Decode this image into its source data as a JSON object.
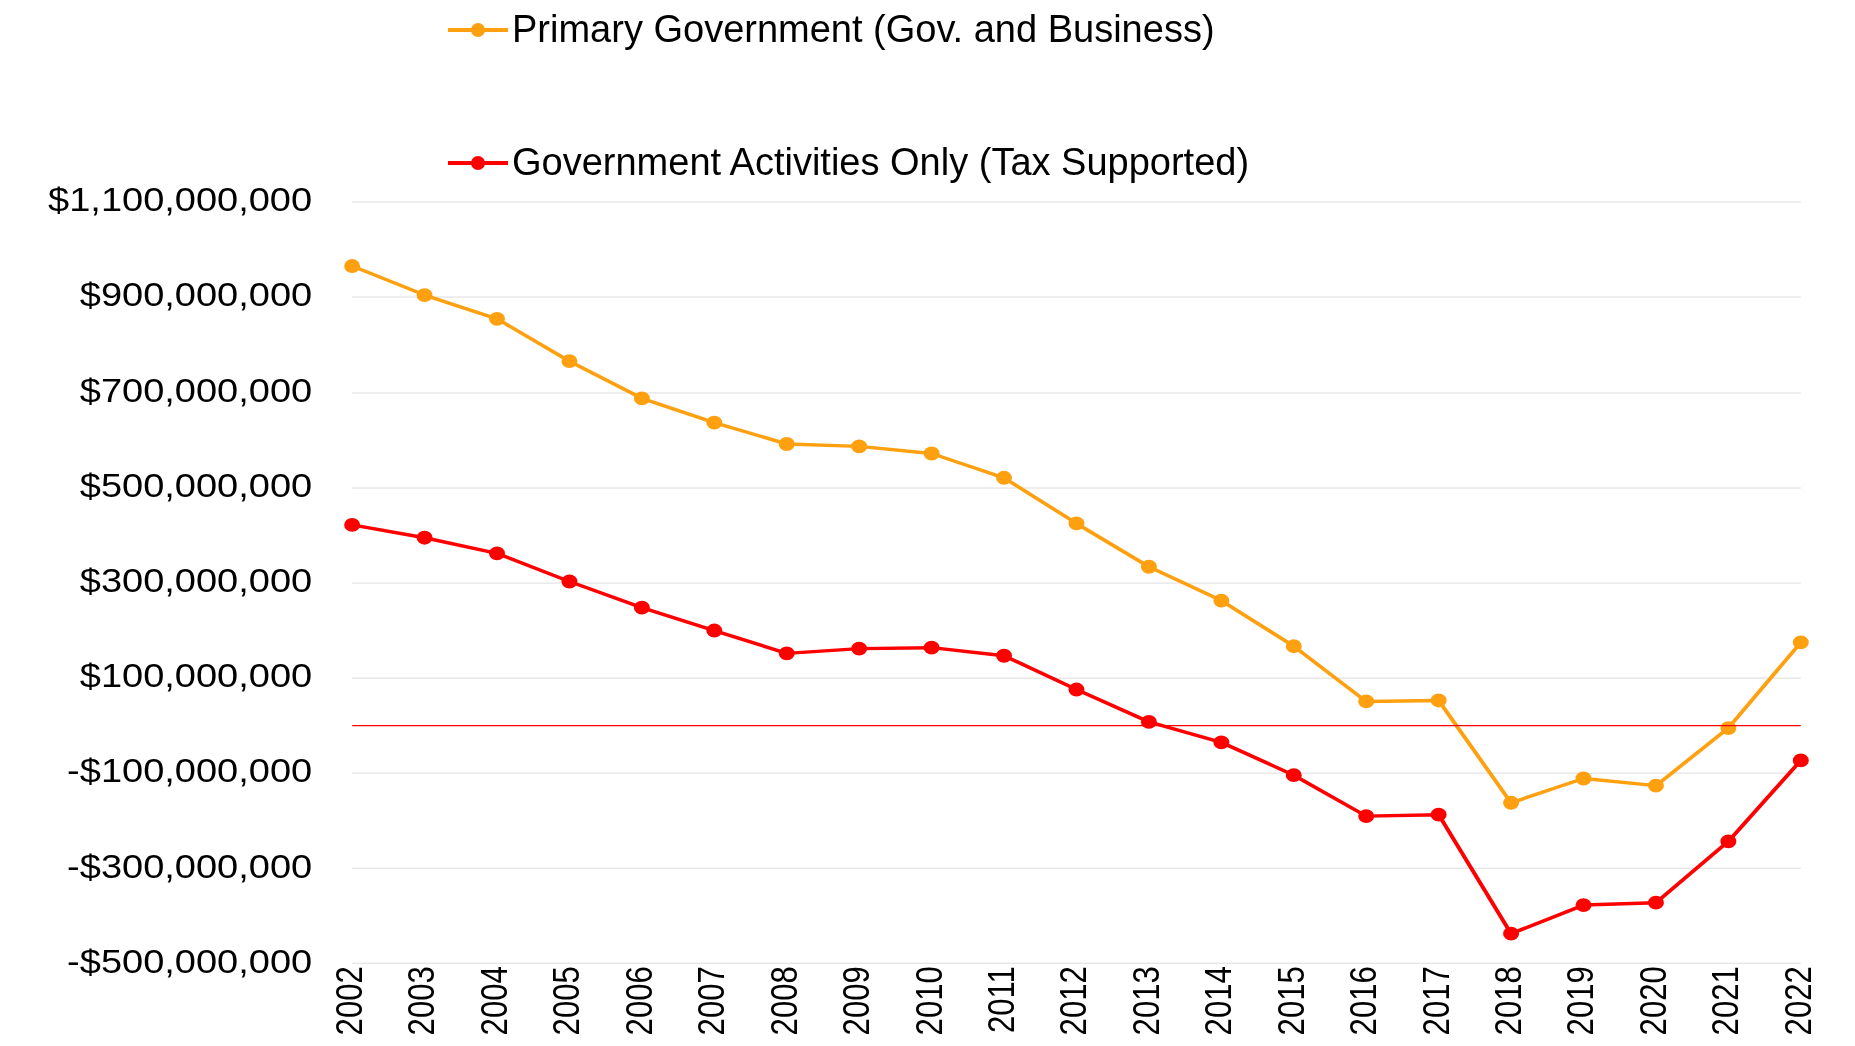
{
  "chart_data": {
    "type": "line",
    "categories": [
      "2002",
      "2003",
      "2004",
      "2005",
      "2006",
      "2007",
      "2008",
      "2009",
      "2010",
      "2011",
      "2012",
      "2013",
      "2014",
      "2015",
      "2016",
      "2017",
      "2018",
      "2019",
      "2020",
      "2021",
      "2022"
    ],
    "series": [
      {
        "name": "Primary Government (Gov. and Business)",
        "color": "#ffa010",
        "values": [
          966000000,
          905000000,
          855000000,
          766000000,
          688000000,
          637000000,
          592000000,
          587000000,
          572000000,
          521000000,
          425000000,
          334000000,
          263000000,
          167000000,
          51000000,
          53000000,
          -162000000,
          -111000000,
          -126000000,
          -5000000,
          175000000
        ]
      },
      {
        "name": "Government Activities Only (Tax Supported)",
        "color": "#ff0000",
        "values": [
          422000000,
          395000000,
          362000000,
          303000000,
          248000000,
          200000000,
          152000000,
          162000000,
          164000000,
          147000000,
          76000000,
          8000000,
          -35000000,
          -104000000,
          -190000000,
          -187000000,
          -437000000,
          -377000000,
          -372000000,
          -243000000,
          -73000000
        ]
      }
    ],
    "ylim": [
      -500000000,
      1100000000
    ],
    "yticks": [
      {
        "value": -500000000,
        "label": "-$500,000,000"
      },
      {
        "value": -300000000,
        "label": "-$300,000,000"
      },
      {
        "value": -100000000,
        "label": "-$100,000,000"
      },
      {
        "value": 100000000,
        "label": "$100,000,000"
      },
      {
        "value": 300000000,
        "label": "$300,000,000"
      },
      {
        "value": 500000000,
        "label": "$500,000,000"
      },
      {
        "value": 700000000,
        "label": "$700,000,000"
      },
      {
        "value": 900000000,
        "label": "$900,000,000"
      },
      {
        "value": 1100000000,
        "label": "$1,100,000,000"
      }
    ],
    "ref_lines": [
      {
        "axis": "y",
        "value": 0,
        "color": "#ff0000"
      }
    ],
    "grid": "y",
    "legend": "top",
    "marker": "circle",
    "line_style": "solid"
  }
}
